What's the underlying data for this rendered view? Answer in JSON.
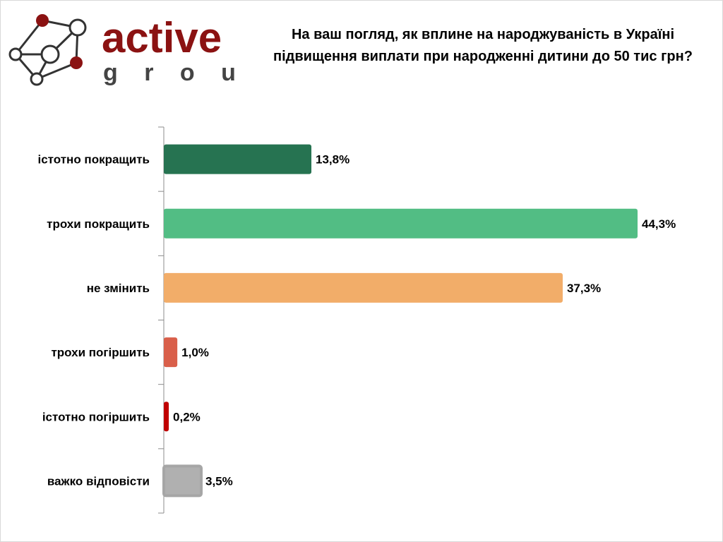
{
  "logo": {
    "text_main": "active",
    "text_sub": "g r o u p"
  },
  "chart_data": {
    "type": "bar",
    "orientation": "horizontal",
    "title": "На ваш погляд, як вплине на народжуваність в Україні підвищення виплати при народженні дитини до 50 тис грн?",
    "title_lines": [
      "На ваш погляд, як вплине на народжуваність в Україні",
      "підвищення виплати при народженні дитини до 50 тис грн?"
    ],
    "categories": [
      "істотно покращить",
      "трохи покращить",
      "не змінить",
      "трохи погіршить",
      "істотно погіршить",
      "важко відповісти"
    ],
    "values": [
      13.8,
      44.3,
      37.3,
      1.0,
      0.2,
      3.5
    ],
    "labels": [
      "13,8%",
      "44,3%",
      "37,3%",
      "1,0%",
      "0,2%",
      "3,5%"
    ],
    "colors": [
      "#267351",
      "#52bd84",
      "#f2ad69",
      "#d95f4a",
      "#c00000",
      "#b0b0b0"
    ],
    "xlim": [
      0,
      44.3
    ],
    "grid": false,
    "legend": "none",
    "xlabel": "",
    "ylabel": ""
  }
}
